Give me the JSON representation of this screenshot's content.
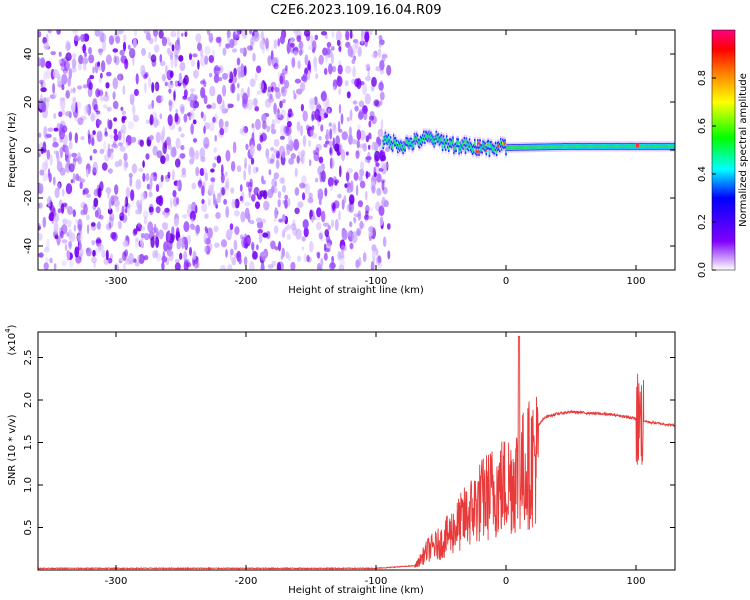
{
  "figure_title": "C2E6.2023.109.16.04.R09",
  "colors": {
    "snr_line": "#e83a3a",
    "spectrum_low": "#7a00ff",
    "colormap": [
      "#ffffff",
      "#8000ff",
      "#0000ff",
      "#00ffff",
      "#00ff00",
      "#ffff00",
      "#ff8000",
      "#ff0000",
      "#ff0080"
    ]
  },
  "chart_data": [
    {
      "type": "heatmap",
      "title": "",
      "xlabel": "Height of straight line (km)",
      "ylabel": "Frequency (Hz)",
      "xlim": [
        -360,
        130
      ],
      "ylim": [
        -50,
        50
      ],
      "x_ticks": [
        -300,
        -200,
        -100,
        0,
        100
      ],
      "y_ticks": [
        -40,
        -20,
        0,
        20,
        40
      ],
      "noise_region_x": [
        -360,
        -90
      ],
      "signal_band": [
        {
          "x": -95,
          "f": 4
        },
        {
          "x": -80,
          "f": 2
        },
        {
          "x": -60,
          "f": 5
        },
        {
          "x": -40,
          "f": 2
        },
        {
          "x": -20,
          "f": 1
        },
        {
          "x": 0,
          "f": 1
        },
        {
          "x": 50,
          "f": 1.5
        },
        {
          "x": 130,
          "f": 1.5
        }
      ],
      "colorbar": {
        "label": "Normalized spectral amplitude",
        "range": [
          0,
          1
        ],
        "ticks": [
          "0.0",
          "0.2",
          "0.4",
          "0.6",
          "0.8"
        ]
      }
    },
    {
      "type": "line",
      "title": "",
      "xlabel": "Height of straight line (km)",
      "ylabel": "SNR (10 * v/v)",
      "y_multiplier": "(x10",
      "y_multiplier_exp": "4",
      "xlim": [
        -360,
        130
      ],
      "ylim": [
        0,
        2.8
      ],
      "x_ticks": [
        -300,
        -200,
        -100,
        0,
        100
      ],
      "y_ticks": [
        "0.5",
        "1.0",
        "1.5",
        "2.0",
        "2.5"
      ],
      "series": [
        {
          "x": [
            -360,
            -100,
            -70,
            -60,
            -50,
            -40,
            -30,
            -20,
            -10,
            0,
            10,
            20,
            30,
            40,
            50,
            60,
            70,
            80,
            90,
            100,
            110,
            120,
            130
          ],
          "y": [
            0.02,
            0.02,
            0.05,
            0.3,
            0.4,
            0.6,
            0.8,
            1.0,
            1.15,
            1.25,
            1.4,
            1.6,
            1.8,
            1.84,
            1.86,
            1.85,
            1.84,
            1.83,
            1.81,
            1.78,
            1.74,
            1.72,
            1.7
          ]
        }
      ]
    }
  ]
}
